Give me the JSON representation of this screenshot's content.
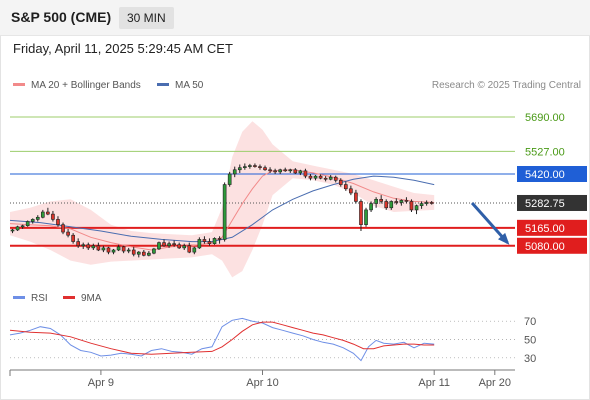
{
  "header": {
    "title": "S&P 500 (CME)",
    "interval": "30 MIN",
    "datetime": "Friday, April 11, 2025 5:29:45 AM CET"
  },
  "credit": "Research © 2025 Trading Central",
  "legend": {
    "bb": "MA 20 + Bollinger Bands",
    "ma50": "MA 50",
    "rsi": "RSI",
    "ma9": "9MA"
  },
  "colors": {
    "bullish": "#2e9a3a",
    "bearish": "#d9342b",
    "candle": "#222222",
    "bollinger_fill": "#fbdada",
    "ma20": "#f28a8a",
    "ma50": "#4a6db0",
    "resistance_green": "#9ccd6b",
    "pivot_blue": "#1f5fd6",
    "support_red": "#e01e1e",
    "current_price": "#333333",
    "arrow": "#2f5fa8",
    "rsi": "#6e8fe6",
    "rsi_ma": "#e03030"
  },
  "chart_data": [
    {
      "type": "candlestick",
      "xlim": [
        0,
        100
      ],
      "ylim": [
        4880,
        5780
      ],
      "x_ticks": [
        {
          "label": "Apr 9",
          "x": 18
        },
        {
          "label": "Apr 10",
          "x": 50
        },
        {
          "label": "Apr 11",
          "x": 84
        },
        {
          "label": "Apr 20",
          "x": 96
        }
      ],
      "levels": [
        {
          "label": "5690.00",
          "value": 5690,
          "kind": "resistance"
        },
        {
          "label": "5527.00",
          "value": 5527,
          "kind": "resistance"
        },
        {
          "label": "5420.00",
          "value": 5420,
          "kind": "pivot"
        },
        {
          "label": "5282.75",
          "value": 5282.75,
          "kind": "current"
        },
        {
          "label": "5165.00",
          "value": 5165,
          "kind": "support"
        },
        {
          "label": "5080.00",
          "value": 5080,
          "kind": "support"
        }
      ],
      "projection": {
        "from": [
          91.5,
          5282.75
        ],
        "to": [
          98.5,
          5095
        ]
      },
      "candles": [
        [
          0.5,
          5150,
          5160,
          5140,
          5155
        ],
        [
          1.5,
          5155,
          5175,
          5150,
          5170
        ],
        [
          2.5,
          5170,
          5180,
          5160,
          5175
        ],
        [
          3.5,
          5175,
          5200,
          5170,
          5195
        ],
        [
          4.5,
          5195,
          5210,
          5185,
          5205
        ],
        [
          5.5,
          5205,
          5225,
          5195,
          5215
        ],
        [
          6.5,
          5215,
          5250,
          5210,
          5240
        ],
        [
          7.5,
          5240,
          5260,
          5225,
          5230
        ],
        [
          8.5,
          5230,
          5245,
          5195,
          5205
        ],
        [
          9.5,
          5205,
          5220,
          5170,
          5180
        ],
        [
          10.5,
          5180,
          5190,
          5135,
          5145
        ],
        [
          11.5,
          5145,
          5160,
          5120,
          5130
        ],
        [
          12.5,
          5130,
          5140,
          5090,
          5100
        ],
        [
          13.5,
          5100,
          5115,
          5070,
          5080
        ],
        [
          14.5,
          5080,
          5095,
          5065,
          5085
        ],
        [
          15.5,
          5085,
          5095,
          5060,
          5070
        ],
        [
          16.5,
          5070,
          5090,
          5060,
          5080
        ],
        [
          17.5,
          5080,
          5095,
          5055,
          5060
        ],
        [
          18.5,
          5060,
          5080,
          5050,
          5070
        ],
        [
          19.5,
          5070,
          5075,
          5040,
          5050
        ],
        [
          20.5,
          5050,
          5065,
          5040,
          5060
        ],
        [
          21.5,
          5060,
          5085,
          5055,
          5075
        ],
        [
          22.5,
          5075,
          5080,
          5045,
          5055
        ],
        [
          23.5,
          5055,
          5070,
          5045,
          5060
        ],
        [
          24.5,
          5060,
          5075,
          5030,
          5040
        ],
        [
          25.5,
          5040,
          5055,
          5025,
          5050
        ],
        [
          26.5,
          5050,
          5060,
          5030,
          5035
        ],
        [
          27.5,
          5035,
          5055,
          5030,
          5045
        ],
        [
          28.5,
          5045,
          5070,
          5040,
          5065
        ],
        [
          29.5,
          5065,
          5100,
          5060,
          5095
        ],
        [
          30.5,
          5095,
          5110,
          5075,
          5080
        ],
        [
          31.5,
          5080,
          5100,
          5070,
          5090
        ],
        [
          32.5,
          5090,
          5105,
          5075,
          5085
        ],
        [
          33.5,
          5085,
          5095,
          5065,
          5070
        ],
        [
          34.5,
          5070,
          5090,
          5060,
          5080
        ],
        [
          35.5,
          5080,
          5095,
          5045,
          5050
        ],
        [
          36.5,
          5050,
          5075,
          5040,
          5070
        ],
        [
          37.5,
          5070,
          5120,
          5065,
          5110
        ],
        [
          38.5,
          5110,
          5125,
          5090,
          5100
        ],
        [
          39.5,
          5100,
          5115,
          5080,
          5090
        ],
        [
          40.5,
          5090,
          5120,
          5085,
          5115
        ],
        [
          41.5,
          5115,
          5125,
          5090,
          5110
        ],
        [
          42.5,
          5110,
          5380,
          5100,
          5370
        ],
        [
          43.5,
          5370,
          5430,
          5360,
          5420
        ],
        [
          44.5,
          5420,
          5455,
          5405,
          5440
        ],
        [
          45.5,
          5440,
          5465,
          5425,
          5450
        ],
        [
          46.5,
          5450,
          5470,
          5440,
          5455
        ],
        [
          47.5,
          5455,
          5468,
          5445,
          5460
        ],
        [
          48.5,
          5460,
          5470,
          5450,
          5455
        ],
        [
          49.5,
          5455,
          5465,
          5440,
          5450
        ],
        [
          50.5,
          5450,
          5460,
          5435,
          5440
        ],
        [
          51.5,
          5440,
          5452,
          5425,
          5435
        ],
        [
          52.5,
          5435,
          5445,
          5420,
          5430
        ],
        [
          53.5,
          5430,
          5445,
          5420,
          5440
        ],
        [
          54.5,
          5440,
          5450,
          5430,
          5435
        ],
        [
          55.5,
          5435,
          5445,
          5425,
          5440
        ],
        [
          56.5,
          5440,
          5448,
          5420,
          5425
        ],
        [
          57.5,
          5425,
          5440,
          5415,
          5435
        ],
        [
          58.5,
          5435,
          5445,
          5400,
          5410
        ],
        [
          59.5,
          5410,
          5420,
          5390,
          5400
        ],
        [
          60.5,
          5400,
          5415,
          5390,
          5410
        ],
        [
          61.5,
          5410,
          5418,
          5395,
          5400
        ],
        [
          62.5,
          5400,
          5410,
          5385,
          5395
        ],
        [
          63.5,
          5395,
          5415,
          5390,
          5405
        ],
        [
          64.5,
          5405,
          5412,
          5380,
          5390
        ],
        [
          65.5,
          5390,
          5400,
          5360,
          5370
        ],
        [
          66.5,
          5370,
          5385,
          5340,
          5350
        ],
        [
          67.5,
          5350,
          5365,
          5320,
          5330
        ],
        [
          68.5,
          5330,
          5345,
          5280,
          5290
        ],
        [
          69.5,
          5290,
          5300,
          5150,
          5180
        ],
        [
          70.5,
          5180,
          5260,
          5170,
          5250
        ],
        [
          71.5,
          5250,
          5290,
          5240,
          5280
        ],
        [
          72.5,
          5280,
          5310,
          5260,
          5300
        ],
        [
          73.5,
          5300,
          5320,
          5280,
          5290
        ],
        [
          74.5,
          5290,
          5300,
          5250,
          5260
        ],
        [
          75.5,
          5260,
          5295,
          5250,
          5290
        ],
        [
          76.5,
          5290,
          5305,
          5275,
          5285
        ],
        [
          77.5,
          5285,
          5300,
          5270,
          5295
        ],
        [
          78.5,
          5295,
          5310,
          5280,
          5290
        ],
        [
          79.5,
          5290,
          5300,
          5240,
          5250
        ],
        [
          80.5,
          5250,
          5275,
          5230,
          5270
        ],
        [
          81.5,
          5270,
          5290,
          5255,
          5280
        ],
        [
          82.5,
          5280,
          5295,
          5270,
          5285
        ],
        [
          83.5,
          5285,
          5292,
          5275,
          5282.75
        ]
      ],
      "ma20": [
        [
          0,
          5185
        ],
        [
          4,
          5180
        ],
        [
          8,
          5175
        ],
        [
          12,
          5160
        ],
        [
          16,
          5120
        ],
        [
          20,
          5095
        ],
        [
          24,
          5075
        ],
        [
          28,
          5060
        ],
        [
          32,
          5075
        ],
        [
          36,
          5080
        ],
        [
          40,
          5095
        ],
        [
          42,
          5120
        ],
        [
          44,
          5200
        ],
        [
          46,
          5280
        ],
        [
          48,
          5350
        ],
        [
          50,
          5410
        ],
        [
          52,
          5435
        ],
        [
          56,
          5440
        ],
        [
          60,
          5425
        ],
        [
          64,
          5405
        ],
        [
          68,
          5375
        ],
        [
          72,
          5335
        ],
        [
          76,
          5305
        ],
        [
          80,
          5290
        ],
        [
          84,
          5285
        ]
      ],
      "bb_upper": [
        [
          0,
          5240
        ],
        [
          4,
          5260
        ],
        [
          8,
          5290
        ],
        [
          12,
          5300
        ],
        [
          16,
          5250
        ],
        [
          20,
          5180
        ],
        [
          24,
          5150
        ],
        [
          28,
          5140
        ],
        [
          32,
          5135
        ],
        [
          36,
          5130
        ],
        [
          40,
          5145
        ],
        [
          42,
          5260
        ],
        [
          44,
          5500
        ],
        [
          46,
          5620
        ],
        [
          48,
          5670
        ],
        [
          50,
          5630
        ],
        [
          52,
          5560
        ],
        [
          56,
          5480
        ],
        [
          60,
          5460
        ],
        [
          64,
          5440
        ],
        [
          68,
          5420
        ],
        [
          72,
          5390
        ],
        [
          76,
          5360
        ],
        [
          80,
          5330
        ],
        [
          84,
          5320
        ]
      ],
      "bb_lower": [
        [
          0,
          5130
        ],
        [
          4,
          5100
        ],
        [
          8,
          5060
        ],
        [
          12,
          5010
        ],
        [
          16,
          4990
        ],
        [
          20,
          5005
        ],
        [
          24,
          5010
        ],
        [
          28,
          5015
        ],
        [
          32,
          5020
        ],
        [
          36,
          5025
        ],
        [
          40,
          5040
        ],
        [
          42,
          5010
        ],
        [
          44,
          4930
        ],
        [
          46,
          4960
        ],
        [
          48,
          5060
        ],
        [
          50,
          5180
        ],
        [
          52,
          5320
        ],
        [
          56,
          5400
        ],
        [
          60,
          5390
        ],
        [
          64,
          5370
        ],
        [
          68,
          5330
        ],
        [
          72,
          5270
        ],
        [
          76,
          5240
        ],
        [
          80,
          5245
        ],
        [
          84,
          5250
        ]
      ],
      "ma50": [
        [
          0,
          5200
        ],
        [
          6,
          5190
        ],
        [
          12,
          5170
        ],
        [
          18,
          5150
        ],
        [
          24,
          5125
        ],
        [
          30,
          5110
        ],
        [
          36,
          5100
        ],
        [
          40,
          5100
        ],
        [
          44,
          5120
        ],
        [
          48,
          5180
        ],
        [
          52,
          5250
        ],
        [
          56,
          5300
        ],
        [
          60,
          5340
        ],
        [
          64,
          5370
        ],
        [
          68,
          5395
        ],
        [
          72,
          5410
        ],
        [
          76,
          5405
        ],
        [
          80,
          5390
        ],
        [
          84,
          5370
        ]
      ]
    },
    {
      "type": "line",
      "name_rsi": "RSI",
      "name_ma": "9MA",
      "xlim": [
        0,
        100
      ],
      "ylim": [
        20,
        80
      ],
      "y_ticks": [
        70,
        50,
        30
      ],
      "rsi": [
        [
          0,
          55
        ],
        [
          2,
          57
        ],
        [
          4,
          60
        ],
        [
          6,
          64
        ],
        [
          8,
          62
        ],
        [
          10,
          55
        ],
        [
          12,
          44
        ],
        [
          14,
          38
        ],
        [
          16,
          36
        ],
        [
          18,
          32
        ],
        [
          20,
          33
        ],
        [
          22,
          35
        ],
        [
          24,
          34
        ],
        [
          26,
          32
        ],
        [
          28,
          38
        ],
        [
          30,
          40
        ],
        [
          32,
          37
        ],
        [
          34,
          36
        ],
        [
          36,
          34
        ],
        [
          38,
          40
        ],
        [
          40,
          42
        ],
        [
          42,
          64
        ],
        [
          44,
          71
        ],
        [
          46,
          73
        ],
        [
          48,
          70
        ],
        [
          50,
          68
        ],
        [
          52,
          63
        ],
        [
          54,
          60
        ],
        [
          56,
          57
        ],
        [
          58,
          54
        ],
        [
          60,
          50
        ],
        [
          62,
          47
        ],
        [
          64,
          45
        ],
        [
          66,
          41
        ],
        [
          68,
          35
        ],
        [
          69.5,
          27
        ],
        [
          71,
          42
        ],
        [
          72.5,
          49
        ],
        [
          74,
          46
        ],
        [
          76,
          45
        ],
        [
          78,
          47
        ],
        [
          80,
          41
        ],
        [
          82,
          46
        ],
        [
          84,
          45
        ]
      ],
      "rsi_ma": [
        [
          0,
          60
        ],
        [
          4,
          58
        ],
        [
          8,
          57
        ],
        [
          12,
          53
        ],
        [
          16,
          46
        ],
        [
          20,
          40
        ],
        [
          24,
          35
        ],
        [
          28,
          34
        ],
        [
          32,
          35
        ],
        [
          36,
          36
        ],
        [
          40,
          37
        ],
        [
          42,
          42
        ],
        [
          44,
          50
        ],
        [
          46,
          59
        ],
        [
          48,
          66
        ],
        [
          50,
          69
        ],
        [
          52,
          69
        ],
        [
          54,
          66
        ],
        [
          56,
          63
        ],
        [
          58,
          60
        ],
        [
          60,
          57
        ],
        [
          62,
          55
        ],
        [
          64,
          52
        ],
        [
          66,
          49
        ],
        [
          68,
          45
        ],
        [
          70,
          40
        ],
        [
          72,
          40
        ],
        [
          74,
          43
        ],
        [
          76,
          44
        ],
        [
          78,
          45
        ],
        [
          80,
          45
        ],
        [
          82,
          44
        ],
        [
          84,
          44
        ]
      ]
    }
  ]
}
